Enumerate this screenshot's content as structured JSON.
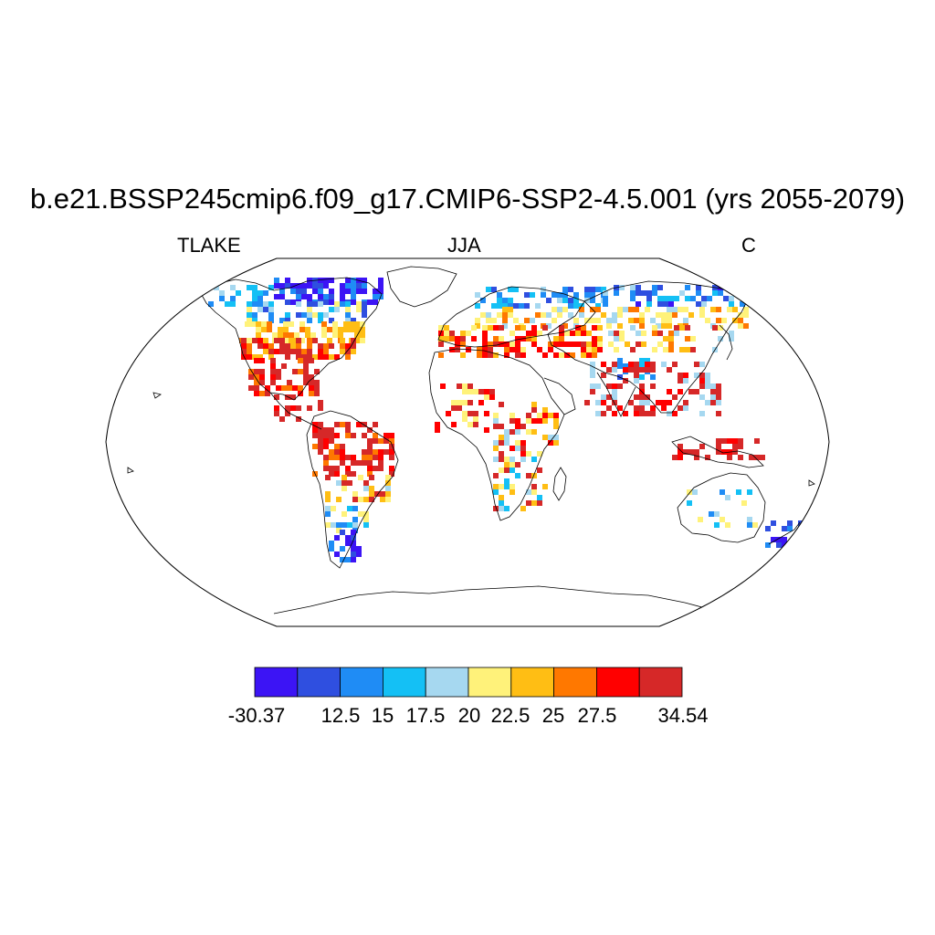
{
  "title": "b.e21.BSSP245cmip6.f09_g17.CMIP6-SSP2-4.5.001 (yrs 2055-2079)",
  "subtitle_left": "TLAKE",
  "subtitle_center": "JJA",
  "subtitle_right": "C",
  "colorbar": {
    "colors": [
      "#3c14f5",
      "#2f4fe0",
      "#1f8cf5",
      "#14c0f5",
      "#a6d8f0",
      "#fff27a",
      "#ffbe14",
      "#ff7800",
      "#ff0000",
      "#d62828"
    ],
    "labels": [
      "-30.37",
      "12.5",
      "15",
      "17.5",
      "20",
      "22.5",
      "25",
      "27.5",
      "34.54"
    ]
  }
}
